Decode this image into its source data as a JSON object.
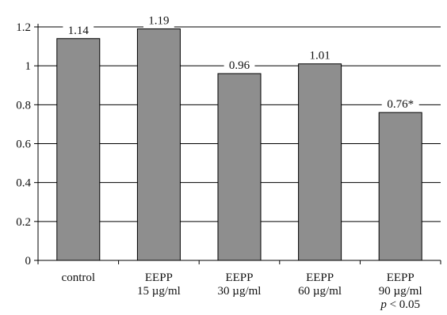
{
  "chart_data": {
    "type": "bar",
    "categories": [
      [
        "control"
      ],
      [
        "EEPP",
        "15 µg/ml"
      ],
      [
        "EEPP",
        "30 µg/ml"
      ],
      [
        "EEPP",
        "60 µg/ml"
      ],
      [
        "EEPP",
        "90 µg/ml",
        "p < 0.05"
      ]
    ],
    "values": [
      1.14,
      1.19,
      0.96,
      1.01,
      0.76
    ],
    "data_labels": [
      "1.14",
      "1.19",
      "0.96",
      "1.01",
      "0.76*"
    ],
    "yticks": [
      "0",
      "0.2",
      "0.4",
      "0.6",
      "0.8",
      "1",
      "1.2"
    ],
    "ylim": [
      0,
      1.2
    ],
    "grid": true,
    "legend": "none",
    "bar_color": "#8e8e8e",
    "title": "",
    "xlabel": "",
    "ylabel": ""
  }
}
